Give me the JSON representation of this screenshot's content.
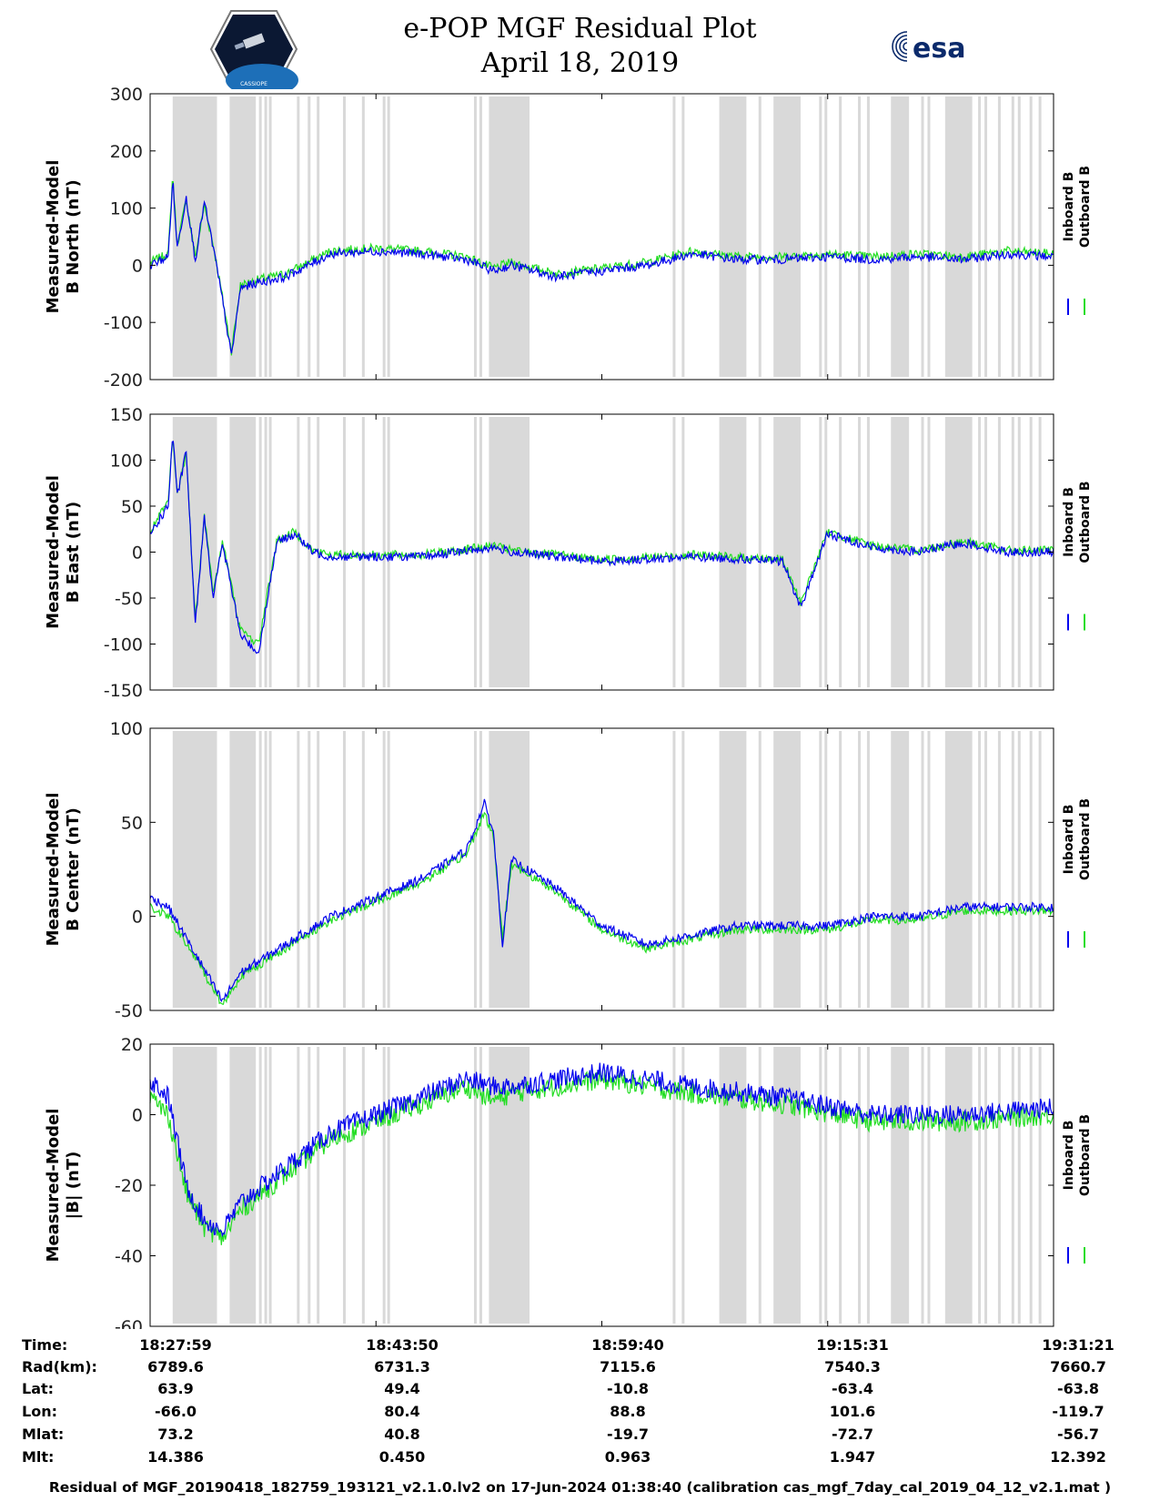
{
  "header": {
    "title_line1": "e-POP MGF Residual Plot",
    "title_line2": "April 18, 2019",
    "left_logo_text": "CASSIOPE",
    "right_logo_text": "esa"
  },
  "colors": {
    "inboard": "#0000ee",
    "outboard": "#22dd22",
    "shade": "#d9d9d9"
  },
  "legend": {
    "inboard_label": "Inboard B",
    "outboard_label": "Outboard B"
  },
  "chart_data": [
    {
      "type": "line",
      "ylabel_line1": "Measured-Model",
      "ylabel_line2": "B North (nT)",
      "ylim": [
        -200,
        300
      ],
      "yticks": [
        300,
        200,
        100,
        0,
        -100,
        -200
      ],
      "series": [
        {
          "name": "Inboard B",
          "x": [
            0,
            0.02,
            0.025,
            0.03,
            0.04,
            0.05,
            0.06,
            0.07,
            0.08,
            0.09,
            0.1,
            0.12,
            0.15,
            0.2,
            0.25,
            0.3,
            0.35,
            0.38,
            0.4,
            0.45,
            0.5,
            0.55,
            0.6,
            0.65,
            0.7,
            0.75,
            0.8,
            0.85,
            0.9,
            0.95,
            1.0
          ],
          "y": [
            0,
            15,
            150,
            30,
            120,
            10,
            110,
            30,
            -60,
            -160,
            -40,
            -30,
            -20,
            20,
            25,
            20,
            10,
            -10,
            0,
            -20,
            -10,
            0,
            20,
            10,
            10,
            15,
            10,
            15,
            10,
            20,
            15
          ]
        },
        {
          "name": "Outboard B",
          "x": [
            0,
            0.02,
            0.025,
            0.03,
            0.04,
            0.05,
            0.06,
            0.07,
            0.08,
            0.09,
            0.1,
            0.12,
            0.15,
            0.2,
            0.25,
            0.3,
            0.35,
            0.38,
            0.4,
            0.45,
            0.5,
            0.55,
            0.6,
            0.65,
            0.7,
            0.75,
            0.8,
            0.85,
            0.9,
            0.95,
            1.0
          ],
          "y": [
            5,
            20,
            160,
            35,
            115,
            15,
            105,
            35,
            -55,
            -150,
            -35,
            -25,
            -15,
            25,
            30,
            25,
            15,
            -5,
            5,
            -15,
            -5,
            5,
            25,
            15,
            15,
            20,
            15,
            20,
            15,
            25,
            20
          ]
        }
      ]
    },
    {
      "type": "line",
      "ylabel_line1": "Measured-Model",
      "ylabel_line2": "B East (nT)",
      "ylim": [
        -150,
        150
      ],
      "yticks": [
        150,
        100,
        50,
        0,
        -50,
        -100,
        -150
      ],
      "series": [
        {
          "name": "Inboard B",
          "x": [
            0,
            0.02,
            0.025,
            0.03,
            0.04,
            0.05,
            0.06,
            0.07,
            0.08,
            0.1,
            0.12,
            0.14,
            0.16,
            0.18,
            0.2,
            0.3,
            0.38,
            0.4,
            0.5,
            0.6,
            0.7,
            0.72,
            0.75,
            0.8,
            0.85,
            0.9,
            0.95,
            1.0
          ],
          "y": [
            20,
            50,
            130,
            60,
            110,
            -80,
            40,
            -50,
            10,
            -90,
            -110,
            10,
            20,
            0,
            -5,
            -5,
            5,
            0,
            -10,
            -5,
            -10,
            -60,
            20,
            5,
            0,
            10,
            0,
            0
          ]
        },
        {
          "name": "Outboard B",
          "x": [
            0,
            0.02,
            0.025,
            0.03,
            0.04,
            0.05,
            0.06,
            0.07,
            0.08,
            0.1,
            0.12,
            0.14,
            0.16,
            0.18,
            0.2,
            0.3,
            0.38,
            0.4,
            0.5,
            0.6,
            0.7,
            0.72,
            0.75,
            0.8,
            0.85,
            0.9,
            0.95,
            1.0
          ],
          "y": [
            22,
            55,
            125,
            62,
            108,
            -75,
            42,
            -45,
            12,
            -85,
            -100,
            12,
            22,
            2,
            -3,
            -3,
            7,
            2,
            -8,
            -3,
            -8,
            -55,
            22,
            7,
            2,
            12,
            2,
            2
          ]
        }
      ]
    },
    {
      "type": "line",
      "ylabel_line1": "Measured-Model",
      "ylabel_line2": "B Center (nT)",
      "ylim": [
        -50,
        100
      ],
      "yticks": [
        100,
        50,
        0,
        -50
      ],
      "series": [
        {
          "name": "Inboard B",
          "x": [
            0,
            0.02,
            0.05,
            0.08,
            0.1,
            0.15,
            0.2,
            0.25,
            0.3,
            0.35,
            0.37,
            0.38,
            0.39,
            0.4,
            0.45,
            0.5,
            0.55,
            0.6,
            0.65,
            0.7,
            0.75,
            0.8,
            0.85,
            0.9,
            0.95,
            1.0
          ],
          "y": [
            10,
            5,
            -20,
            -45,
            -30,
            -15,
            0,
            10,
            20,
            35,
            60,
            45,
            -15,
            30,
            15,
            -5,
            -15,
            -10,
            -5,
            -5,
            -5,
            0,
            0,
            5,
            5,
            5
          ]
        },
        {
          "name": "Outboard B",
          "x": [
            0,
            0.02,
            0.05,
            0.08,
            0.1,
            0.15,
            0.2,
            0.25,
            0.3,
            0.35,
            0.37,
            0.38,
            0.39,
            0.4,
            0.45,
            0.5,
            0.55,
            0.6,
            0.65,
            0.7,
            0.75,
            0.8,
            0.85,
            0.9,
            0.95,
            1.0
          ],
          "y": [
            5,
            0,
            -22,
            -47,
            -32,
            -17,
            -2,
            8,
            18,
            33,
            55,
            42,
            -12,
            28,
            13,
            -7,
            -17,
            -12,
            -7,
            -7,
            -7,
            -2,
            -2,
            3,
            3,
            3
          ]
        }
      ]
    },
    {
      "type": "line",
      "ylabel_line1": "Measured-Model",
      "ylabel_line2": "|B| (nT)",
      "ylim": [
        -60,
        20
      ],
      "yticks": [
        20,
        0,
        -20,
        -40,
        -60
      ],
      "series": [
        {
          "name": "Inboard B",
          "x": [
            0,
            0.02,
            0.04,
            0.06,
            0.08,
            0.1,
            0.15,
            0.2,
            0.3,
            0.35,
            0.38,
            0.4,
            0.45,
            0.5,
            0.55,
            0.6,
            0.7,
            0.8,
            0.9,
            1.0
          ],
          "y": [
            10,
            5,
            -20,
            -30,
            -33,
            -25,
            -15,
            -5,
            5,
            10,
            8,
            8,
            10,
            12,
            10,
            8,
            5,
            0,
            0,
            2
          ]
        },
        {
          "name": "Outboard B",
          "x": [
            0,
            0.02,
            0.04,
            0.06,
            0.08,
            0.1,
            0.15,
            0.2,
            0.3,
            0.35,
            0.38,
            0.4,
            0.45,
            0.5,
            0.55,
            0.6,
            0.7,
            0.8,
            0.9,
            1.0
          ],
          "y": [
            5,
            0,
            -22,
            -32,
            -35,
            -27,
            -17,
            -7,
            3,
            8,
            4,
            6,
            8,
            10,
            8,
            6,
            3,
            -2,
            -2,
            0
          ]
        }
      ]
    }
  ],
  "shading": {
    "bands": [
      [
        0.025,
        0.074
      ],
      [
        0.088,
        0.117
      ],
      [
        0.375,
        0.42
      ],
      [
        0.63,
        0.66
      ],
      [
        0.69,
        0.72
      ],
      [
        0.82,
        0.84
      ],
      [
        0.88,
        0.91
      ]
    ],
    "lines": [
      0.122,
      0.128,
      0.133,
      0.164,
      0.176,
      0.186,
      0.215,
      0.236,
      0.259,
      0.264,
      0.36,
      0.366,
      0.58,
      0.59,
      0.675,
      0.742,
      0.748,
      0.764,
      0.785,
      0.795,
      0.855,
      0.862,
      0.918,
      0.925,
      0.94,
      0.955,
      0.962,
      0.975,
      0.985
    ]
  },
  "info": {
    "labels": [
      "Time:",
      "Rad(km):",
      "Lat:",
      "Lon:",
      "Mlat:",
      "Mlt:"
    ],
    "columns": [
      [
        "18:27:59",
        "6789.6",
        "63.9",
        "-66.0",
        "73.2",
        "14.386"
      ],
      [
        "18:43:50",
        "6731.3",
        "49.4",
        "80.4",
        "40.8",
        "0.450"
      ],
      [
        "18:59:40",
        "7115.6",
        "-10.8",
        "88.8",
        "-19.7",
        "0.963"
      ],
      [
        "19:15:31",
        "7540.3",
        "-63.4",
        "101.6",
        "-72.7",
        "1.947"
      ],
      [
        "19:31:21",
        "7660.7",
        "-63.8",
        "-119.7",
        "-56.7",
        "12.392"
      ]
    ]
  },
  "footer": "Residual of MGF_20190418_182759_193121_v2.1.0.lv2 on 17-Jun-2024 01:38:40 (calibration cas_mgf_7day_cal_2019_04_12_v2.1.mat )"
}
